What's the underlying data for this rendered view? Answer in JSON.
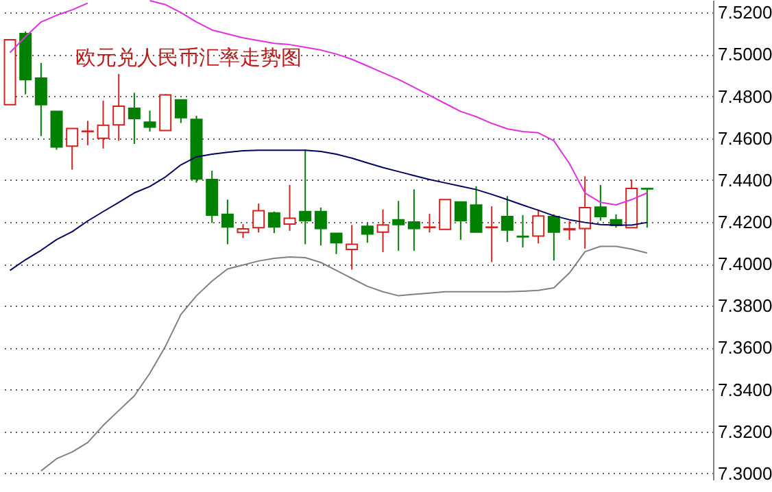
{
  "chart_data": {
    "type": "candlestick",
    "title": "欧元兑人民币汇率走势图",
    "categories": [
      null,
      null,
      null,
      null,
      null,
      null,
      null,
      null,
      null,
      null,
      null,
      null,
      null,
      null,
      null,
      null,
      null,
      null,
      null,
      null,
      null,
      null,
      null,
      null,
      null,
      null,
      null,
      null,
      null,
      null,
      null,
      null,
      null,
      null,
      null,
      null,
      null,
      null,
      null,
      null,
      null,
      null
    ],
    "ohlc": [
      [
        7.476,
        7.507,
        7.476,
        7.507
      ],
      [
        7.51,
        7.511,
        7.481,
        7.488
      ],
      [
        7.4887,
        7.496,
        7.461,
        7.476
      ],
      [
        7.4728,
        7.4728,
        7.4545,
        7.4558
      ],
      [
        7.4562,
        7.4647,
        7.445,
        7.4647
      ],
      [
        7.4632,
        7.4683,
        7.4567,
        7.4634
      ],
      [
        7.46,
        7.4779,
        7.4551,
        7.4662
      ],
      [
        7.4664,
        7.4907,
        7.4588,
        7.4753
      ],
      [
        7.4743,
        7.4817,
        7.4573,
        7.4694
      ],
      [
        7.4677,
        7.4732,
        7.4632,
        7.4653
      ],
      [
        7.4637,
        7.4811,
        7.4637,
        7.4807
      ],
      [
        7.4783,
        7.4783,
        7.4673,
        7.4698
      ],
      [
        7.469,
        7.4707,
        7.4388,
        7.4405
      ],
      [
        7.4403,
        7.4445,
        7.4196,
        7.4233
      ],
      [
        7.4237,
        7.4307,
        7.4094,
        7.4176
      ],
      [
        7.415,
        7.419,
        7.4124,
        7.4167
      ],
      [
        7.4173,
        7.4288,
        7.415,
        7.4254
      ],
      [
        7.4243,
        7.425,
        7.4147,
        7.4176
      ],
      [
        7.419,
        7.4377,
        7.4158,
        7.4218
      ],
      [
        7.425,
        7.4547,
        7.4094,
        7.4207
      ],
      [
        7.425,
        7.4269,
        7.4088,
        7.4169
      ],
      [
        7.4146,
        7.4146,
        7.4047,
        7.4101
      ],
      [
        7.4069,
        7.4186,
        7.3973,
        7.4094
      ],
      [
        7.418,
        7.4197,
        7.4101,
        7.4143
      ],
      [
        7.4152,
        7.426,
        7.4056,
        7.4186
      ],
      [
        7.4211,
        7.4301,
        7.4063,
        7.4188
      ],
      [
        7.42,
        7.4356,
        7.4063,
        7.4169
      ],
      [
        7.4174,
        7.4239,
        7.415,
        7.4176
      ],
      [
        7.4165,
        7.4307,
        7.4165,
        7.4307
      ],
      [
        7.4296,
        7.4296,
        7.4115,
        7.4207
      ],
      [
        7.4281,
        7.4371,
        7.4152,
        7.4152
      ],
      [
        7.4174,
        7.4275,
        7.4009,
        7.4176
      ],
      [
        7.4226,
        7.4324,
        7.4105,
        7.4162
      ],
      [
        7.4132,
        7.4233,
        7.4079,
        7.4129
      ],
      [
        7.4133,
        7.426,
        7.4098,
        7.4229
      ],
      [
        7.4226,
        7.4237,
        7.4016,
        7.4152
      ],
      [
        7.4163,
        7.4205,
        7.4115,
        7.4168
      ],
      [
        7.4169,
        7.4418,
        7.4073,
        7.4269
      ],
      [
        7.4271,
        7.4377,
        7.4207,
        7.4226
      ],
      [
        7.4211,
        7.4237,
        7.4173,
        7.4184
      ],
      [
        7.4173,
        7.4403,
        7.4173,
        7.436
      ],
      [
        7.436,
        7.436,
        7.4173,
        7.4358
      ]
    ],
    "colors": [
      "#d42020",
      "#008000",
      "#008000",
      "#008000",
      "#d42020",
      "#d42020",
      "#d42020",
      "#d42020",
      "#008000",
      "#008000",
      "#d42020",
      "#008000",
      "#008000",
      "#008000",
      "#008000",
      "#d42020",
      "#d42020",
      "#008000",
      "#d42020",
      "#008000",
      "#008000",
      "#008000",
      "#d42020",
      "#008000",
      "#d42020",
      "#008000",
      "#008000",
      "#d42020",
      "#d42020",
      "#008000",
      "#008000",
      "#d42020",
      "#008000",
      "#008000",
      "#d42020",
      "#008000",
      "#d42020",
      "#d42020",
      "#008000",
      "#008000",
      "#d42020",
      "#008000"
    ],
    "series": [
      {
        "type": "line",
        "color": "#e030e0",
        "values": [
          7.5009,
          7.5085,
          7.5155,
          7.5187,
          7.5213,
          7.5245,
          null,
          null,
          null,
          7.5257,
          7.5238,
          7.52,
          7.5155,
          7.5117,
          7.5098,
          7.5079,
          7.5066,
          7.5053,
          7.5047,
          7.5034,
          7.5021,
          7.5002,
          7.4977,
          7.4945,
          7.4913,
          7.4881,
          7.4843,
          7.4805,
          7.4766,
          7.4728,
          7.4703,
          7.4671,
          7.4645,
          7.4632,
          7.4626,
          7.4588,
          7.4479,
          7.4339,
          7.4294,
          7.4282,
          7.4307,
          7.4339
        ]
      },
      {
        "type": "line",
        "color": "#000060",
        "values": [
          7.3969,
          7.402,
          7.4065,
          7.4116,
          7.4154,
          7.4205,
          7.425,
          7.4294,
          7.4339,
          7.437,
          7.4415,
          7.4473,
          7.4511,
          7.4524,
          7.4533,
          7.454,
          7.4543,
          7.4543,
          7.4543,
          7.4543,
          7.4537,
          7.4524,
          7.4505,
          7.4482,
          7.446,
          7.4441,
          7.4422,
          7.4403,
          7.4387,
          7.4371,
          7.4355,
          7.4332,
          7.4307,
          7.4281,
          7.4256,
          7.423,
          7.4211,
          7.4198,
          7.4188,
          7.4185,
          7.4185,
          7.4198
        ]
      },
      {
        "type": "line",
        "color": "#808080",
        "values": [
          null,
          null,
          7.3012,
          7.307,
          7.3102,
          7.3147,
          7.3229,
          7.33,
          7.337,
          7.3478,
          7.3606,
          7.3759,
          7.3848,
          7.3918,
          7.3976,
          7.3995,
          7.4014,
          7.4027,
          7.4033,
          7.403,
          7.4007,
          7.3969,
          7.3931,
          7.3893,
          7.3867,
          7.3848,
          7.3855,
          7.3861,
          7.3867,
          7.3867,
          7.3867,
          7.3867,
          7.3867,
          7.387,
          7.3874,
          7.3886,
          7.3957,
          7.4058,
          7.4084,
          7.4084,
          7.4071,
          7.4052
        ]
      }
    ],
    "ylim": [
      7.297,
      7.526
    ],
    "yticks": [
      {
        "value": 7.3,
        "label": "7.3000"
      },
      {
        "value": 7.32,
        "label": "7.3200"
      },
      {
        "value": 7.34,
        "label": "7.3400"
      },
      {
        "value": 7.36,
        "label": "7.3600"
      },
      {
        "value": 7.38,
        "label": "7.3800"
      },
      {
        "value": 7.4,
        "label": "7.4000"
      },
      {
        "value": 7.42,
        "label": "7.4200"
      },
      {
        "value": 7.44,
        "label": "7.4400"
      },
      {
        "value": 7.46,
        "label": "7.4600"
      },
      {
        "value": 7.48,
        "label": "7.4800"
      },
      {
        "value": 7.5,
        "label": "7.5000"
      },
      {
        "value": 7.52,
        "label": "7.5200"
      }
    ],
    "grid": "y",
    "tick_labels": "y"
  }
}
